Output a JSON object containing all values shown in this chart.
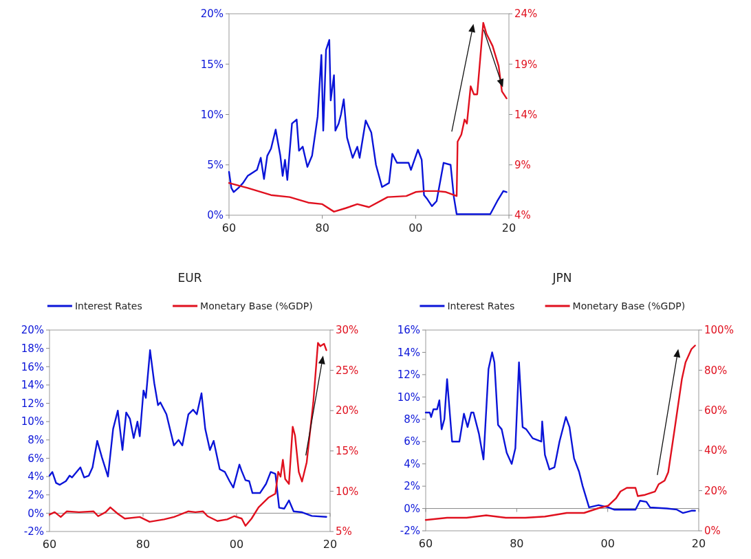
{
  "chart_data": [
    {
      "type": "line",
      "xlim": [
        1960,
        2020
      ],
      "xticks": [
        {
          "value": 1960,
          "label": "60"
        },
        {
          "value": 1980,
          "label": "80"
        },
        {
          "value": 2000,
          "label": "00"
        },
        {
          "value": 2020,
          "label": "20"
        }
      ],
      "ylim": [
        0,
        20
      ],
      "yticks": [
        {
          "value": 0,
          "label": "0%"
        },
        {
          "value": 5,
          "label": "5%"
        },
        {
          "value": 10,
          "label": "10%"
        },
        {
          "value": 15,
          "label": "15%"
        },
        {
          "value": 20,
          "label": "20%"
        }
      ],
      "y2lim": [
        4,
        24
      ],
      "y2ticks": [
        {
          "value": 4,
          "label": "4%"
        },
        {
          "value": 9,
          "label": "9%"
        },
        {
          "value": 14,
          "label": "14%"
        },
        {
          "value": 19,
          "label": "19%"
        },
        {
          "value": 24,
          "label": "24%"
        }
      ],
      "grid": false,
      "legend": false,
      "marker": "none",
      "line_style": "solid",
      "series": [
        {
          "color": "#0a14d8",
          "x": [
            1960,
            1960.5,
            1961,
            1962,
            1963,
            1964,
            1966,
            1966.8,
            1967.5,
            1968.2,
            1969,
            1970,
            1971,
            1971.5,
            1972,
            1972.5,
            1973.5,
            1974.5,
            1975,
            1975.8,
            1976.8,
            1977.8,
            1979,
            1979.8,
            1980.2,
            1980.8,
            1981.5,
            1981.8,
            1982.5,
            1982.8,
            1983.5,
            1984,
            1984.6,
            1985.3,
            1986.5,
            1987.5,
            1988,
            1989.3,
            1990.5,
            1991.5,
            1992.8,
            1994.3,
            1995,
            1996,
            1998.5,
            1999,
            2000.5,
            2001.3,
            2001.8,
            2002.5,
            2003.5,
            2004.5,
            2006,
            2007.5,
            2008.2,
            2008.8,
            2011,
            2016,
            2017.5,
            2018.8,
            2019.5
          ],
          "values": [
            4.3,
            2.7,
            2.3,
            2.7,
            3.2,
            3.9,
            4.5,
            5.7,
            3.6,
            5.9,
            6.6,
            8.5,
            5.9,
            3.9,
            5.5,
            3.5,
            9.1,
            9.5,
            6.4,
            6.8,
            4.8,
            5.9,
            9.8,
            15.9,
            8.4,
            16.4,
            17.4,
            11.4,
            13.9,
            8.4,
            9.1,
            10,
            11.5,
            7.7,
            5.7,
            6.8,
            5.7,
            9.4,
            8.2,
            5.0,
            2.8,
            3.2,
            6.1,
            5.2,
            5.2,
            4.5,
            6.5,
            5.5,
            2.0,
            1.6,
            0.9,
            1.4,
            5.2,
            5.0,
            1.8,
            0.1,
            0.1,
            0.1,
            1.4,
            2.4,
            2.3
          ]
        },
        {
          "color": "#e0101e",
          "axis": "y2",
          "x": [
            1960,
            1964,
            1969,
            1973,
            1977,
            1980,
            1982.5,
            1985,
            1987.5,
            1990,
            1994,
            1998,
            2000,
            2002,
            2004.5,
            2006.5,
            2008.8,
            2009,
            2009.8,
            2010.5,
            2011,
            2011.8,
            2012.5,
            2013.2,
            2014.5,
            2015.2,
            2016.5,
            2017.8,
            2018.5,
            2019.5
          ],
          "values": [
            7.2,
            6.7,
            6.0,
            5.8,
            5.25,
            5.1,
            4.35,
            4.7,
            5.1,
            4.8,
            5.8,
            5.9,
            6.3,
            6.4,
            6.4,
            6.3,
            5.9,
            11.3,
            12.0,
            13.5,
            13.1,
            16.8,
            16.0,
            16.0,
            23.1,
            22.0,
            20.8,
            18.8,
            16.3,
            15.6
          ]
        }
      ]
    },
    {
      "type": "line",
      "title": "EUR",
      "xlim": [
        1960,
        2020
      ],
      "xticks": [
        {
          "value": 1960,
          "label": "60"
        },
        {
          "value": 1980,
          "label": "80"
        },
        {
          "value": 2000,
          "label": "00"
        },
        {
          "value": 2020,
          "label": "20"
        }
      ],
      "ylim": [
        -2,
        20
      ],
      "yticks": [
        {
          "value": -2,
          "label": "-2%"
        },
        {
          "value": 0,
          "label": "0%"
        },
        {
          "value": 2,
          "label": "2%"
        },
        {
          "value": 4,
          "label": "4%"
        },
        {
          "value": 6,
          "label": "6%"
        },
        {
          "value": 8,
          "label": "8%"
        },
        {
          "value": 10,
          "label": "10%"
        },
        {
          "value": 12,
          "label": "12%"
        },
        {
          "value": 14,
          "label": "14%"
        },
        {
          "value": 16,
          "label": "16%"
        },
        {
          "value": 18,
          "label": "18%"
        },
        {
          "value": 20,
          "label": "20%"
        }
      ],
      "y2lim": [
        5,
        30
      ],
      "y2ticks": [
        {
          "value": 5,
          "label": "5%"
        },
        {
          "value": 10,
          "label": "10%"
        },
        {
          "value": 15,
          "label": "15%"
        },
        {
          "value": 20,
          "label": "20%"
        },
        {
          "value": 25,
          "label": "25%"
        },
        {
          "value": 30,
          "label": "30%"
        }
      ],
      "grid": false,
      "legend": "top",
      "marker": "none",
      "line_style": "solid",
      "ref_lines": [
        {
          "axis": "y",
          "value": 0,
          "color": "#888888"
        }
      ],
      "series": [
        {
          "name": "Interest Rates",
          "color": "#0a14d8",
          "x": [
            1960,
            1960.6,
            1961.4,
            1962.2,
            1963.5,
            1964.3,
            1964.8,
            1966.6,
            1967.4,
            1968.4,
            1969.2,
            1970.2,
            1971.2,
            1972.5,
            1973.6,
            1974.6,
            1975.6,
            1976.4,
            1977.2,
            1978,
            1978.8,
            1979.3,
            1980.1,
            1980.6,
            1981.5,
            1982.4,
            1983.2,
            1983.7,
            1985,
            1986.6,
            1987.6,
            1988.4,
            1989.7,
            1990.7,
            1991.5,
            1992.5,
            1993.3,
            1994.3,
            1995.1,
            1996.4,
            1997.5,
            1998.5,
            1999.3,
            2000.6,
            2001.1,
            2001.9,
            2002.7,
            2003.4,
            2005,
            2006.3,
            2007.3,
            2008.3,
            2009.1,
            2010.2,
            2011.2,
            2012.2,
            2014,
            2016.1,
            2019.2
          ],
          "values": [
            4.1,
            4.5,
            3.3,
            3.1,
            3.5,
            4.1,
            3.9,
            5.0,
            3.9,
            4.1,
            5.0,
            7.9,
            6.1,
            4.0,
            9.2,
            11.2,
            6.9,
            11.0,
            10.3,
            8.2,
            10.0,
            8.4,
            13.4,
            12.6,
            17.8,
            14.2,
            11.8,
            12.1,
            10.8,
            7.4,
            8.0,
            7.4,
            10.8,
            11.3,
            10.8,
            13.1,
            9.2,
            6.9,
            7.9,
            4.8,
            4.5,
            3.5,
            2.8,
            5.3,
            4.6,
            3.6,
            3.5,
            2.2,
            2.2,
            3.2,
            4.5,
            4.3,
            0.6,
            0.5,
            1.4,
            0.2,
            0.1,
            -0.3,
            -0.4
          ]
        },
        {
          "name": "Monetary Base (%GDP)",
          "color": "#e0101e",
          "axis": "y2",
          "x": [
            1960,
            1961.1,
            1962.4,
            1963.7,
            1966.3,
            1969.4,
            1970.4,
            1972,
            1973,
            1974.6,
            1976.1,
            1979.3,
            1981.4,
            1984.5,
            1986.6,
            1989.7,
            1991.2,
            1992.8,
            1993.8,
            1995.9,
            1998,
            1999.5,
            2001.1,
            2001.9,
            2003.2,
            2004.7,
            2006.8,
            2008.3,
            2008.9,
            2009.4,
            2009.9,
            2010.4,
            2011.2,
            2012,
            2012.5,
            2013.3,
            2014,
            2015,
            2016.4,
            2017.4,
            2017.9,
            2018.7,
            2019.2
          ],
          "values": [
            7.1,
            7.4,
            6.8,
            7.5,
            7.4,
            7.5,
            6.9,
            7.4,
            8.0,
            7.2,
            6.6,
            6.8,
            6.2,
            6.5,
            6.8,
            7.5,
            7.4,
            7.5,
            6.9,
            6.3,
            6.5,
            6.9,
            6.6,
            5.7,
            6.6,
            8.0,
            9.2,
            9.7,
            12.4,
            11.8,
            13.9,
            11.5,
            10.9,
            18.0,
            16.9,
            12.4,
            11.2,
            13.6,
            21.0,
            28.4,
            28.0,
            28.3,
            27.5
          ]
        }
      ]
    },
    {
      "type": "line",
      "title": "JPN",
      "xlim": [
        1960,
        2020
      ],
      "xticks": [
        {
          "value": 1960,
          "label": "60"
        },
        {
          "value": 1980,
          "label": "80"
        },
        {
          "value": 2000,
          "label": "00"
        },
        {
          "value": 2020,
          "label": "20"
        }
      ],
      "ylim": [
        -2,
        16
      ],
      "yticks": [
        {
          "value": -2,
          "label": "-2%"
        },
        {
          "value": 0,
          "label": "0%"
        },
        {
          "value": 2,
          "label": "2%"
        },
        {
          "value": 4,
          "label": "4%"
        },
        {
          "value": 6,
          "label": "6%"
        },
        {
          "value": 8,
          "label": "8%"
        },
        {
          "value": 10,
          "label": "10%"
        },
        {
          "value": 12,
          "label": "12%"
        },
        {
          "value": 14,
          "label": "14%"
        },
        {
          "value": 16,
          "label": "16%"
        }
      ],
      "y2lim": [
        0,
        100
      ],
      "y2ticks": [
        {
          "value": 0,
          "label": "0%"
        },
        {
          "value": 20,
          "label": "20%"
        },
        {
          "value": 40,
          "label": "40%"
        },
        {
          "value": 60,
          "label": "60%"
        },
        {
          "value": 80,
          "label": "80%"
        },
        {
          "value": 100,
          "label": "100%"
        }
      ],
      "grid": false,
      "legend": "top",
      "marker": "none",
      "line_style": "solid",
      "ref_lines": [
        {
          "axis": "y",
          "value": 0,
          "color": "#888888"
        }
      ],
      "series": [
        {
          "name": "Interest Rates",
          "color": "#0a14d8",
          "x": [
            1960,
            1960.9,
            1961.2,
            1961.7,
            1962.5,
            1963,
            1963.5,
            1964.1,
            1964.7,
            1965.8,
            1967.4,
            1968.4,
            1969.2,
            1970,
            1970.5,
            1971.7,
            1972.7,
            1973.8,
            1974.6,
            1975.1,
            1975.9,
            1976.7,
            1977.8,
            1978.9,
            1979.7,
            1980.5,
            1981.3,
            1982.1,
            1983.5,
            1985.4,
            1985.6,
            1986.2,
            1987.2,
            1988.3,
            1989.4,
            1990.8,
            1991.6,
            1992.6,
            1993.7,
            1994.5,
            1995.9,
            1998,
            2000.1,
            2001.4,
            2006.1,
            2007.1,
            2008.5,
            2009.3,
            2013,
            2015.2,
            2016.5,
            2018.4,
            2019.2
          ],
          "values": [
            8.6,
            8.6,
            8.2,
            8.9,
            8.9,
            9.7,
            7.1,
            8.0,
            11.6,
            6.0,
            6.0,
            8.5,
            7.3,
            8.6,
            8.6,
            6.7,
            4.4,
            12.5,
            14.0,
            13.1,
            7.5,
            7.1,
            5.0,
            4.0,
            5.4,
            13.1,
            7.3,
            7.1,
            6.3,
            6.0,
            7.8,
            4.8,
            3.5,
            3.7,
            6.0,
            8.2,
            7.3,
            4.5,
            3.3,
            2.0,
            0.1,
            0.3,
            0.1,
            -0.1,
            -0.1,
            0.7,
            0.6,
            0.1,
            0.0,
            -0.1,
            -0.4,
            -0.2,
            -0.2
          ]
        },
        {
          "name": "Monetary Base (%GDP)",
          "color": "#e0101e",
          "axis": "y2",
          "x": [
            1960,
            1964.7,
            1969,
            1973.3,
            1977.6,
            1981.9,
            1986.2,
            1991,
            1994.8,
            1998,
            2000.1,
            2001.8,
            2002.8,
            2004.2,
            2006.1,
            2006.6,
            2008.2,
            2010.4,
            2011.2,
            2012.5,
            2013.3,
            2014.7,
            2016.3,
            2017.1,
            2018.4,
            2019.2
          ],
          "values": [
            5.4,
            6.5,
            6.5,
            7.7,
            6.5,
            6.5,
            7.1,
            8.9,
            8.9,
            11.3,
            12.5,
            16.1,
            19.6,
            21.4,
            21.4,
            17.3,
            17.9,
            19.6,
            23.2,
            25.0,
            29.2,
            50.6,
            75.6,
            83.9,
            90.5,
            92.3
          ]
        }
      ]
    }
  ]
}
